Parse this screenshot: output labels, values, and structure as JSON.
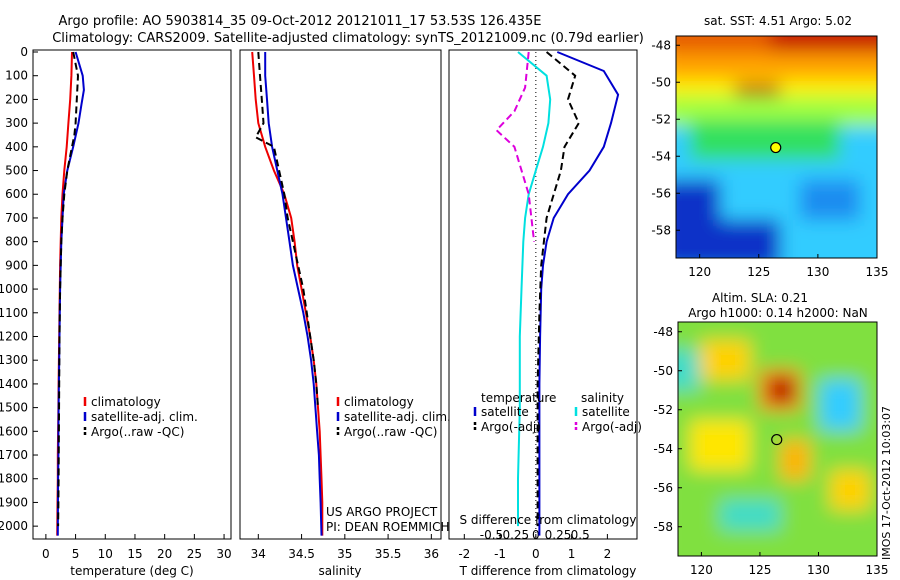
{
  "header": {
    "line1": "Argo profile: AO 5903814_35 09-Oct-2012 20121011_17 53.53S 126.435E",
    "line2": "Climatology: CARS2009. Satellite-adjusted climatology: synTS_20121009.nc (0.79d earlier)"
  },
  "credit": {
    "project": "US ARGO PROJECT",
    "pi": "PI: DEAN ROEMMICH"
  },
  "side_label": "IMOS 17-Oct-2012 10:03:07",
  "colors": {
    "climatology": "#ee0000",
    "satellite": "#0000cc",
    "argo": "#000000",
    "salinity_sat": "#00e0e0",
    "salinity_argo": "#dd00dd"
  },
  "chart_data": [
    {
      "type": "line",
      "xlabel": "temperature (deg C)",
      "xlim": [
        -2,
        31
      ],
      "ylim": [
        2050,
        0
      ],
      "xticks": [
        0,
        5,
        10,
        15,
        20,
        25,
        30
      ],
      "yticks": [
        0,
        100,
        200,
        300,
        400,
        500,
        600,
        700,
        800,
        900,
        1000,
        1100,
        1200,
        1300,
        1400,
        1500,
        1600,
        1700,
        1800,
        1900,
        2000
      ],
      "legend": [
        "climatology",
        "satellite-adj. clim.",
        "Argo(..raw -QC)"
      ],
      "legend_placement": "lower-center",
      "series": [
        {
          "name": "climatology",
          "style": "solid",
          "x": [
            4.4,
            4.3,
            4.1,
            3.8,
            3.5,
            3.1,
            2.8,
            2.6,
            2.5,
            2.4,
            2.35,
            2.3,
            2.25,
            2.2,
            2.15,
            2.1,
            2.05,
            2.0,
            2.0,
            1.95,
            1.9
          ],
          "y": [
            0,
            100,
            200,
            300,
            400,
            500,
            600,
            700,
            800,
            900,
            1000,
            1100,
            1200,
            1300,
            1400,
            1500,
            1600,
            1700,
            1800,
            1900,
            2040
          ]
        },
        {
          "name": "satellite-adj. clim.",
          "style": "solid",
          "x": [
            5.0,
            6.2,
            6.4,
            6.0,
            5.5,
            4.6,
            3.6,
            3.0,
            2.8,
            2.6,
            2.5,
            2.4,
            2.35,
            2.3,
            2.25,
            2.2,
            2.15,
            2.1,
            2.1,
            2.05,
            2.0
          ],
          "y": [
            0,
            100,
            160,
            220,
            300,
            400,
            500,
            600,
            700,
            800,
            900,
            1000,
            1100,
            1200,
            1300,
            1400,
            1500,
            1600,
            1700,
            1800,
            2040
          ]
        },
        {
          "name": "Argo(..raw -QC)",
          "style": "dashed",
          "x": [
            4.6,
            5.4,
            5.2,
            5.0,
            4.8,
            4.4,
            3.6,
            3.1,
            2.8,
            2.6,
            2.5,
            2.4,
            2.3,
            2.25,
            2.2,
            2.15,
            2.1,
            2.05
          ],
          "y": [
            0,
            100,
            200,
            300,
            350,
            400,
            500,
            600,
            700,
            800,
            900,
            1000,
            1200,
            1400,
            1600,
            1800,
            1900,
            2000
          ]
        }
      ]
    },
    {
      "type": "line",
      "xlabel": "salinity",
      "xlim": [
        33.8,
        36.1
      ],
      "ylim": [
        2050,
        0
      ],
      "xticks": [
        34,
        34.5,
        35,
        35.5,
        36
      ],
      "legend": [
        "climatology",
        "satellite-adj. clim.",
        "Argo(..raw -QC)"
      ],
      "legend_placement": "lower-center",
      "series": [
        {
          "name": "climatology",
          "style": "solid",
          "x": [
            33.93,
            33.95,
            33.97,
            34.0,
            34.08,
            34.18,
            34.3,
            34.38,
            34.42,
            34.45,
            34.5,
            34.55,
            34.6,
            34.64,
            34.67,
            34.69,
            34.71,
            34.72,
            34.73,
            34.74,
            34.74
          ],
          "y": [
            0,
            100,
            200,
            300,
            400,
            500,
            600,
            700,
            800,
            900,
            1000,
            1100,
            1200,
            1300,
            1400,
            1500,
            1600,
            1700,
            1800,
            1900,
            2040
          ]
        },
        {
          "name": "satellite-adj. clim.",
          "style": "solid",
          "x": [
            34.08,
            34.08,
            34.1,
            34.12,
            34.16,
            34.22,
            34.28,
            34.32,
            34.36,
            34.4,
            34.46,
            34.52,
            34.57,
            34.61,
            34.64,
            34.66,
            34.68,
            34.7,
            34.71,
            34.72,
            34.73
          ],
          "y": [
            0,
            100,
            200,
            300,
            400,
            500,
            600,
            700,
            800,
            900,
            1000,
            1100,
            1200,
            1300,
            1400,
            1500,
            1600,
            1700,
            1800,
            1900,
            2040
          ]
        },
        {
          "name": "Argo(..raw -QC)",
          "style": "dashed",
          "x": [
            34.0,
            34.02,
            34.04,
            34.06,
            34.0,
            33.97,
            34.18,
            34.24,
            34.3,
            34.34,
            34.4,
            34.46,
            34.52,
            34.56,
            34.6,
            34.64,
            34.67,
            34.69
          ],
          "y": [
            0,
            100,
            200,
            300,
            340,
            360,
            400,
            500,
            600,
            700,
            800,
            900,
            1000,
            1100,
            1200,
            1300,
            1400,
            1500
          ]
        }
      ]
    },
    {
      "type": "line",
      "xlabel": "T difference from climatology",
      "top_label": "S difference from climatology",
      "xlim": [
        -2.4,
        2.8
      ],
      "ylim": [
        2050,
        0
      ],
      "xticks": [
        -2,
        -1,
        0,
        1,
        2
      ],
      "top_ticks": [
        "-0.5",
        "-0.25",
        "0",
        "0.25",
        "0.5"
      ],
      "legend_temperature": {
        "title": "temperature",
        "items": [
          "satellite",
          "Argo(-adj)"
        ]
      },
      "legend_salinity": {
        "title": "salinity",
        "items": [
          "satellite",
          "Argo(-adj)"
        ]
      },
      "legend_placement": "lower-center",
      "series": [
        {
          "name": "satellite",
          "group": "temperature",
          "style": "solid",
          "x": [
            0.6,
            1.9,
            2.3,
            2.1,
            1.9,
            1.5,
            0.9,
            0.5,
            0.3,
            0.2,
            0.15,
            0.12,
            0.1,
            0.1,
            0.1,
            0.1,
            0.1
          ],
          "y": [
            0,
            80,
            180,
            300,
            400,
            500,
            600,
            700,
            800,
            900,
            1000,
            1200,
            1400,
            1600,
            1800,
            1900,
            2040
          ]
        },
        {
          "name": "Argo(-adj)",
          "group": "temperature",
          "style": "dashed",
          "x": [
            0.3,
            1.1,
            0.9,
            1.2,
            0.8,
            0.7,
            0.3,
            0.15,
            0.1,
            0.05,
            0.05,
            0.05
          ],
          "y": [
            0,
            100,
            200,
            300,
            400,
            500,
            700,
            900,
            1100,
            1400,
            1700,
            2000
          ]
        },
        {
          "name": "satellite",
          "group": "salinity",
          "style": "solid",
          "x": [
            -0.5,
            0.3,
            0.4,
            0.35,
            0.2,
            0.0,
            -0.2,
            -0.3,
            -0.35,
            -0.4,
            -0.45,
            -0.45,
            -0.5,
            -0.5
          ],
          "y": [
            0,
            100,
            200,
            300,
            400,
            500,
            600,
            700,
            800,
            1000,
            1200,
            1500,
            1800,
            2000
          ]
        },
        {
          "name": "Argo(-adj)",
          "group": "salinity",
          "style": "dashed",
          "x": [
            -0.2,
            -0.3,
            -0.6,
            -1.1,
            -0.6,
            -0.2,
            -0.05
          ],
          "y": [
            0,
            150,
            250,
            330,
            400,
            600,
            800
          ]
        }
      ]
    },
    {
      "type": "heatmap",
      "title": "sat. SST: 4.51  Argo: 5.02",
      "xlim": [
        118,
        135
      ],
      "ylim": [
        -59.5,
        -47.5
      ],
      "xticks": [
        120,
        125,
        130,
        135
      ],
      "yticks": [
        -48,
        -50,
        -52,
        -54,
        -56,
        -58
      ],
      "marker": {
        "lon": 126.435,
        "lat": -53.53
      }
    },
    {
      "type": "heatmap",
      "title": "Altim. SLA: 0.21",
      "subtitle": "Argo h1000: 0.14 h2000: NaN",
      "xlim": [
        118,
        135
      ],
      "ylim": [
        -59.5,
        -47.5
      ],
      "xticks": [
        120,
        125,
        130,
        135
      ],
      "yticks": [
        -48,
        -50,
        -52,
        -54,
        -56,
        -58
      ],
      "marker": {
        "lon": 126.435,
        "lat": -53.53
      }
    }
  ]
}
